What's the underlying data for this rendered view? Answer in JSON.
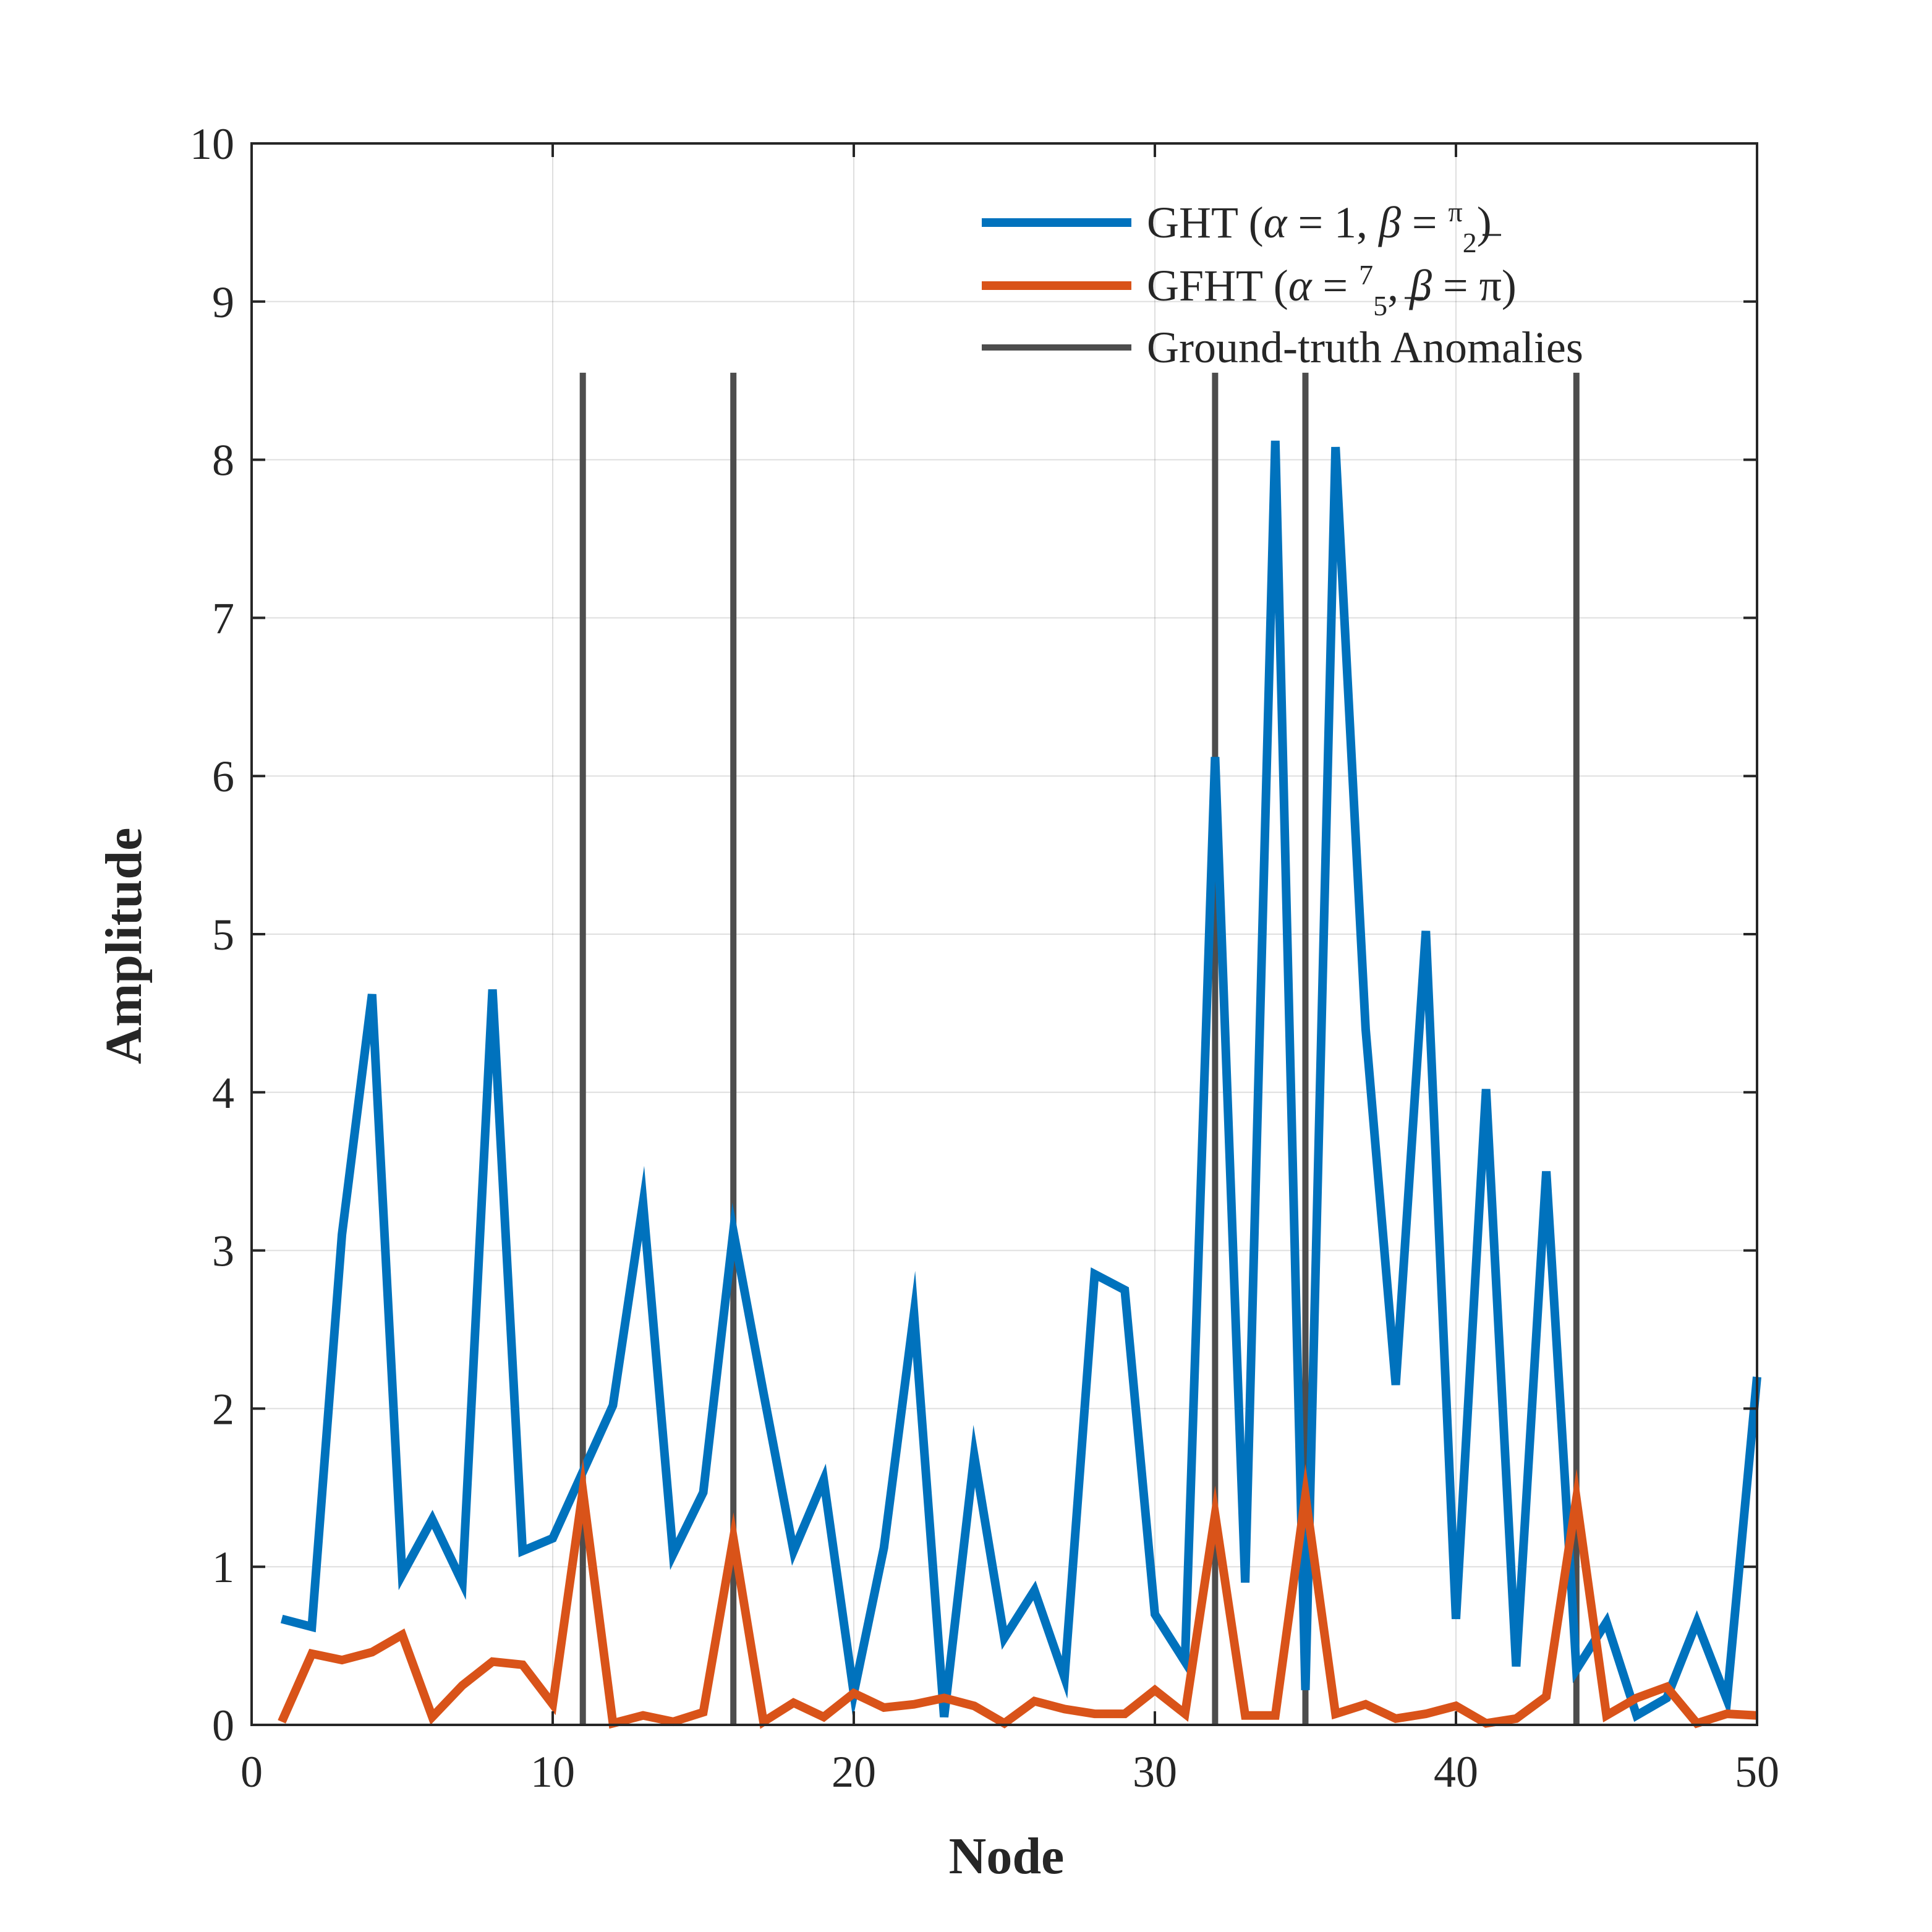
{
  "chart_data": {
    "type": "line",
    "title": "",
    "xlabel": "Node",
    "ylabel": "Amplitude",
    "xlim": [
      0,
      50
    ],
    "ylim": [
      0,
      10
    ],
    "grid": true,
    "legend_position": "top-right",
    "x_ticks": [
      "0",
      "10",
      "20",
      "30",
      "40",
      "50"
    ],
    "y_ticks": [
      "0",
      "1",
      "2",
      "3",
      "4",
      "5",
      "6",
      "7",
      "8",
      "9",
      "10"
    ],
    "x": [
      1,
      2,
      3,
      4,
      5,
      6,
      7,
      8,
      9,
      10,
      11,
      12,
      13,
      14,
      15,
      16,
      17,
      18,
      19,
      20,
      21,
      22,
      23,
      24,
      25,
      26,
      27,
      28,
      29,
      30,
      31,
      32,
      33,
      34,
      35,
      36,
      37,
      38,
      39,
      40,
      41,
      42,
      43,
      44,
      45,
      46,
      47,
      48,
      49,
      50
    ],
    "series": [
      {
        "name": "GHT (α = 1, β = π/2)",
        "color": "#0072BD",
        "values": [
          0.67,
          0.62,
          3.1,
          4.62,
          0.95,
          1.3,
          0.9,
          4.65,
          1.1,
          1.18,
          1.6,
          2.02,
          3.3,
          1.08,
          1.47,
          3.12,
          2.1,
          1.1,
          1.55,
          0.2,
          1.12,
          2.6,
          0.05,
          1.7,
          0.55,
          0.85,
          0.3,
          2.85,
          2.75,
          0.7,
          0.4,
          6.12,
          0.9,
          8.12,
          0.22,
          8.08,
          4.4,
          2.15,
          5.02,
          0.67,
          4.02,
          0.37,
          3.5,
          0.35,
          0.65,
          0.06,
          0.17,
          0.65,
          0.16,
          2.2
        ]
      },
      {
        "name": "GFHT (α = 7/5, β = π)",
        "color": "#D95319",
        "values": [
          0.02,
          0.45,
          0.41,
          0.46,
          0.57,
          0.05,
          0.25,
          0.4,
          0.38,
          0.13,
          1.48,
          0.01,
          0.06,
          0.02,
          0.08,
          1.18,
          0.02,
          0.14,
          0.05,
          0.2,
          0.11,
          0.13,
          0.17,
          0.12,
          0.01,
          0.15,
          0.1,
          0.07,
          0.07,
          0.22,
          0.07,
          1.33,
          0.06,
          0.06,
          1.45,
          0.07,
          0.13,
          0.04,
          0.07,
          0.12,
          0.01,
          0.04,
          0.18,
          1.43,
          0.06,
          0.17,
          0.24,
          0.01,
          0.07,
          0.06
        ]
      }
    ],
    "anomalies": {
      "name": "Ground-truth Anomalies",
      "color": "#4D4D4D",
      "nodes": [
        11,
        16,
        32,
        35,
        44
      ],
      "height": 8.55
    },
    "legend": [
      {
        "pre": "GHT (",
        "greek1": "α",
        "mid1": " = 1,  ",
        "greek2": "β",
        "mid2": " = ",
        "frac_num": "π",
        "frac_den": "2",
        "tail": ")"
      },
      {
        "pre": "GFHT (",
        "greek1": "α",
        "mid1": " = ",
        "frac_num": "7",
        "frac_den": "5",
        "mid2": ",  ",
        "greek2": "β",
        "tail": " = π)"
      },
      {
        "text": "Ground-truth Anomalies"
      }
    ]
  }
}
